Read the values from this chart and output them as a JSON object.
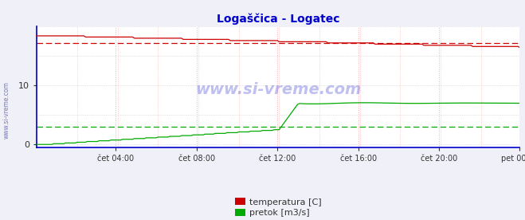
{
  "title": "Logaščica - Logatec",
  "title_color": "#0000cc",
  "bg_color": "#f0f0f8",
  "plot_bg_color": "#ffffff",
  "fig_bg_color": "#f0f0f8",
  "border_color": "#0000cc",
  "xlabel_ticks": [
    "čet 04:00",
    "čet 08:00",
    "čet 12:00",
    "čet 16:00",
    "čet 20:00",
    "pet 00:00"
  ],
  "xlabel_positions_frac": [
    0.1666,
    0.3333,
    0.5,
    0.6666,
    0.8333,
    1.0
  ],
  "yticks": [
    0,
    10
  ],
  "ylim": [
    -0.5,
    20
  ],
  "xlim_n": 288,
  "temp_color": "#cc0000",
  "flow_color": "#00aa00",
  "avg_temp": 17.2,
  "avg_flow": 3.0,
  "watermark": "www.si-vreme.com",
  "watermark_color": "#0000cc",
  "legend_labels": [
    "temperatura [C]",
    "pretok [m3/s]"
  ],
  "legend_colors": [
    "#cc0000",
    "#00aa00"
  ],
  "vgrid_color": "#ffaaaa",
  "hgrid_color": "#cccccc",
  "axis_color": "#0000cc",
  "tick_color": "#333333"
}
